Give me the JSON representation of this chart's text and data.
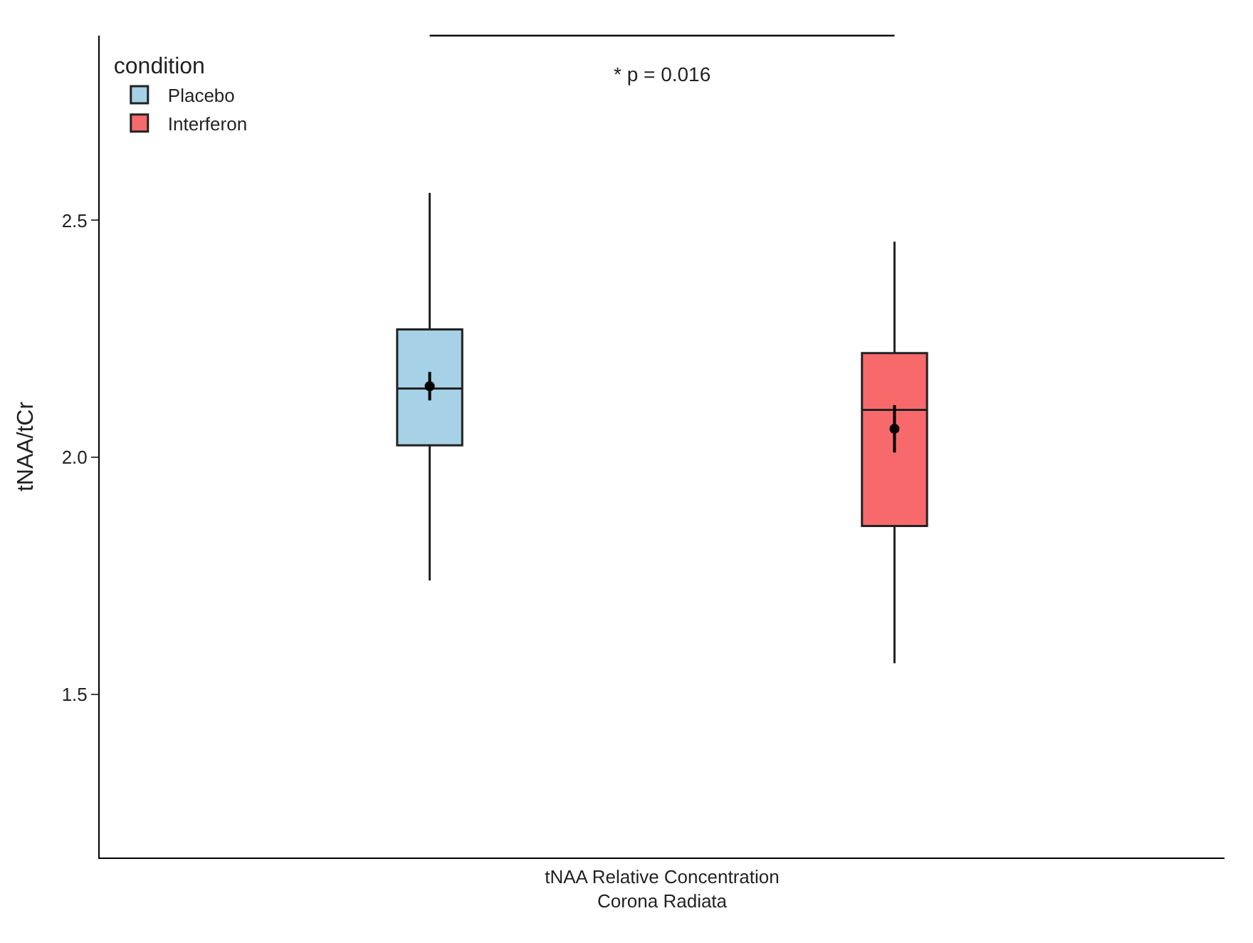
{
  "chart_data": {
    "type": "box",
    "xlabel": "tNAA Relative Concentration\nCorona Radiata",
    "ylabel": "tNAA/tCr",
    "legend_title": "condition",
    "categories": [
      null,
      null
    ],
    "series": [
      {
        "name": "Placebo",
        "color": "#a6d1e6",
        "boxes": [
          {
            "low": 1.74,
            "q1": 2.025,
            "median": 2.145,
            "q3": 2.27,
            "high": 2.558
          },
          null
        ]
      },
      {
        "name": "Interferon",
        "color": "#f8696b",
        "boxes": [
          null,
          {
            "low": 1.565,
            "q1": 1.855,
            "median": 2.1,
            "q3": 2.22,
            "high": 2.455
          }
        ]
      },
      {
        "type": "scatter",
        "color": "#000000",
        "values": [
          2.15,
          2.06
        ],
        "errors": [
          0.03,
          0.05
        ]
      }
    ],
    "annotations": [
      "* p = 0.016"
    ],
    "ylim": [
      1.155,
      2.89
    ],
    "yticks": [
      1.5,
      {
        "value": 2,
        "label": "2.0"
      },
      2.5
    ],
    "legend": "top left"
  }
}
